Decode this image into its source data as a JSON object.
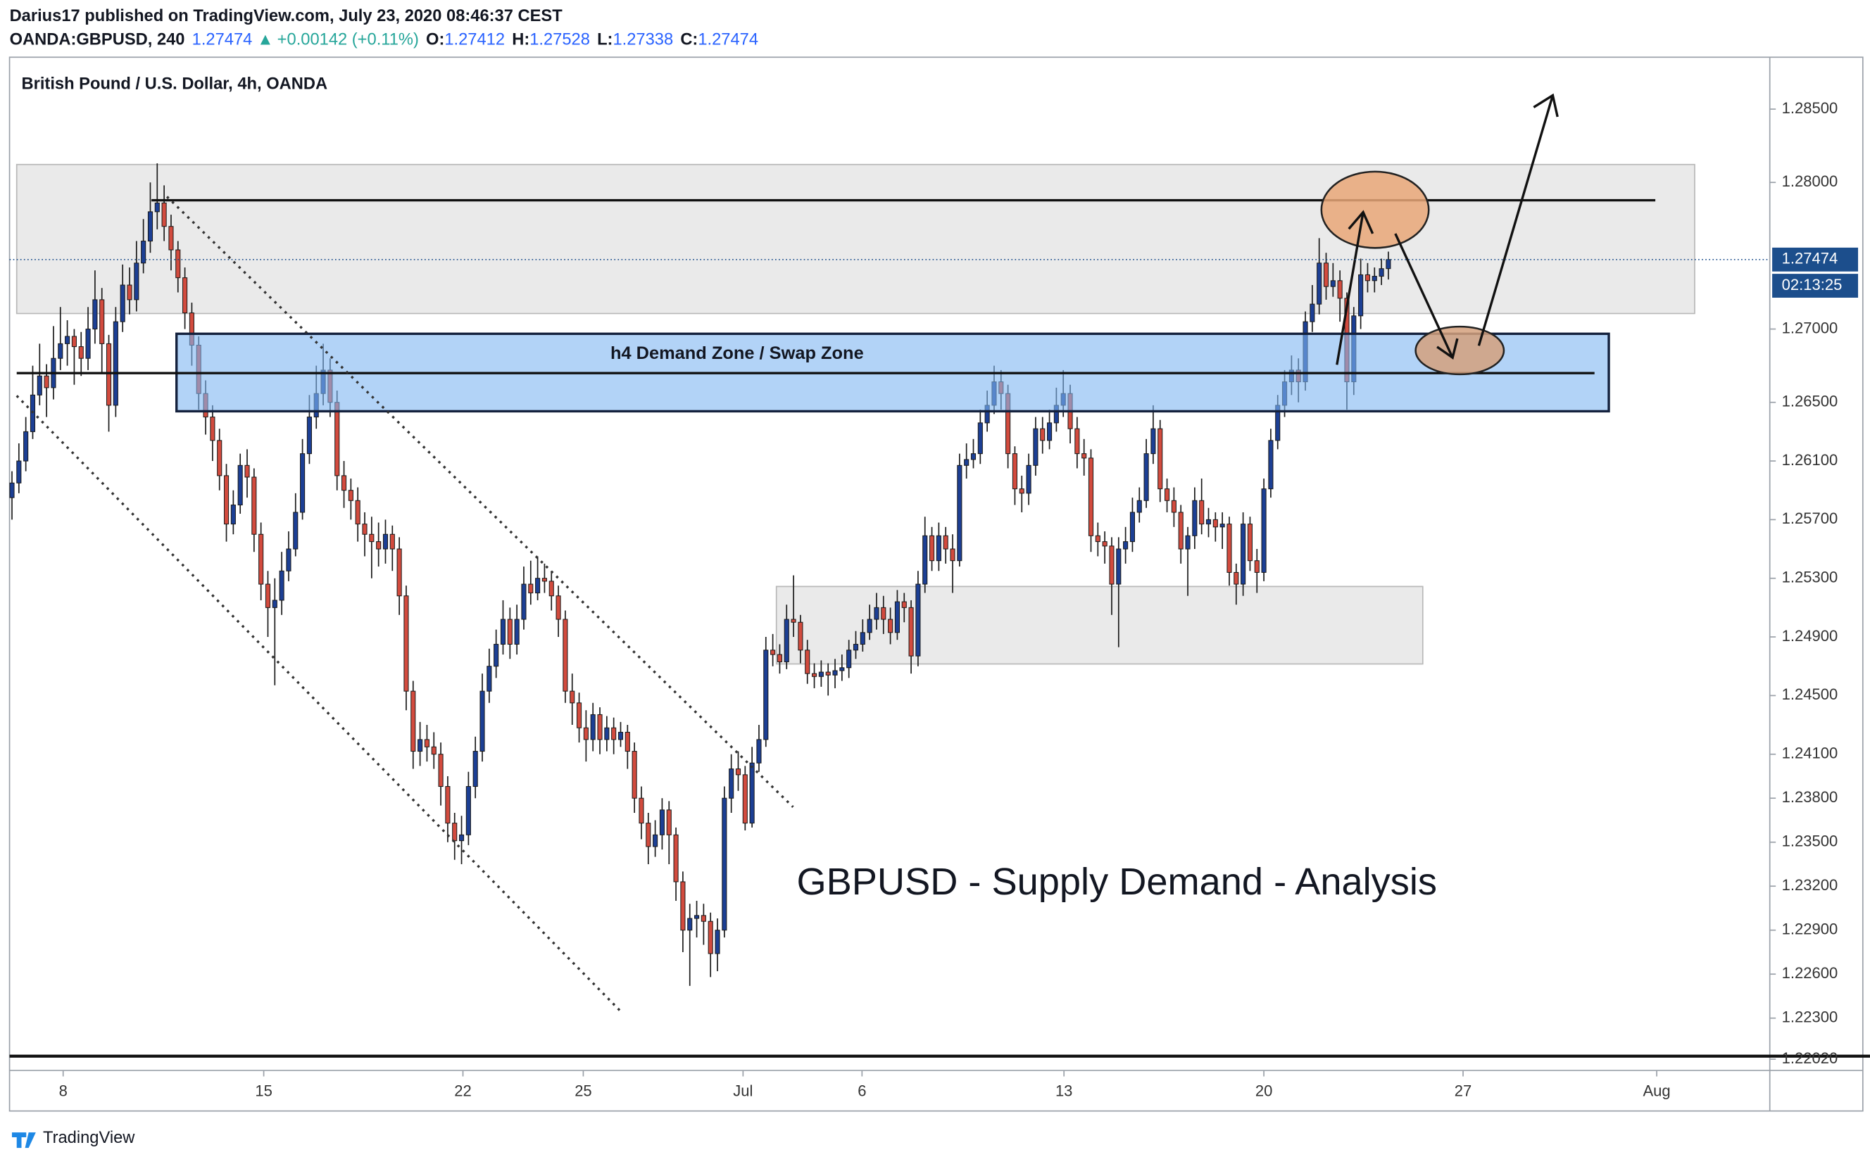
{
  "header": {
    "publisher": "Darius17 published on TradingView.com, July 23, 2020 08:46:37 CEST",
    "symbol": "OANDA:GBPUSD, 240",
    "price": "1.27474",
    "change": "+0.00142 (+0.11%)",
    "ohlc": [
      {
        "label": "O:",
        "value": "1.27412"
      },
      {
        "label": "H:",
        "value": "1.27528"
      },
      {
        "label": "L:",
        "value": "1.27338"
      },
      {
        "label": "C:",
        "value": "1.27474"
      }
    ]
  },
  "chart_data": {
    "type": "candlestick",
    "title": "British Pound / U.S. Dollar, 4h, OANDA",
    "up_color": "#1c3f94",
    "down_color": "#d24b3e",
    "xlim": [
      -0.35,
      254.15
    ],
    "xticks": [
      {
        "value": 7.4,
        "label": "8"
      },
      {
        "value": 36.4,
        "label": "15"
      },
      {
        "value": 65.2,
        "label": "22"
      },
      {
        "value": 82.6,
        "label": "25"
      },
      {
        "value": 105.7,
        "label": "Jul"
      },
      {
        "value": 122.9,
        "label": "6"
      },
      {
        "value": 152.1,
        "label": "13"
      },
      {
        "value": 181.0,
        "label": "20"
      },
      {
        "value": 209.8,
        "label": "27"
      },
      {
        "value": 237.8,
        "label": "Aug"
      }
    ],
    "ylim": [
      1.21943,
      1.28854
    ],
    "yticks": [
      {
        "value": 1.285,
        "label": "1.28500"
      },
      {
        "value": 1.28,
        "label": "1.28000"
      },
      {
        "value": 1.27,
        "label": "1.27000"
      },
      {
        "value": 1.265,
        "label": "1.26500"
      },
      {
        "value": 1.261,
        "label": "1.26100"
      },
      {
        "value": 1.257,
        "label": "1.25700"
      },
      {
        "value": 1.253,
        "label": "1.25300"
      },
      {
        "value": 1.249,
        "label": "1.24900"
      },
      {
        "value": 1.245,
        "label": "1.24500"
      },
      {
        "value": 1.241,
        "label": "1.24100"
      },
      {
        "value": 1.238,
        "label": "1.23800"
      },
      {
        "value": 1.235,
        "label": "1.23500"
      },
      {
        "value": 1.232,
        "label": "1.23200"
      },
      {
        "value": 1.229,
        "label": "1.22900"
      },
      {
        "value": 1.226,
        "label": "1.22600"
      },
      {
        "value": 1.223,
        "label": "1.22300"
      },
      {
        "value": 1.2202,
        "label": "1.22020"
      }
    ],
    "last_price_label": "1.27474",
    "countdown": "02:13:25",
    "annotations": [
      "h4 Demand Zone / Swap Zone",
      "GBPUSD - Supply Demand - Analysis"
    ],
    "candles": [
      [
        1.2585,
        1.2603,
        1.257,
        1.2595
      ],
      [
        1.2595,
        1.2622,
        1.2588,
        1.261
      ],
      [
        1.261,
        1.264,
        1.2603,
        1.263
      ],
      [
        1.263,
        1.2675,
        1.2625,
        1.2655
      ],
      [
        1.2655,
        1.269,
        1.2648,
        1.2668
      ],
      [
        1.2668,
        1.2676,
        1.264,
        1.266
      ],
      [
        1.266,
        1.2702,
        1.2652,
        1.268
      ],
      [
        1.268,
        1.2715,
        1.2672,
        1.269
      ],
      [
        1.269,
        1.2706,
        1.2675,
        1.2695
      ],
      [
        1.2695,
        1.27,
        1.2662,
        1.2688
      ],
      [
        1.2688,
        1.2698,
        1.2668,
        1.268
      ],
      [
        1.268,
        1.2715,
        1.2672,
        1.27
      ],
      [
        1.27,
        1.274,
        1.269,
        1.272
      ],
      [
        1.272,
        1.2728,
        1.267,
        1.269
      ],
      [
        1.269,
        1.2696,
        1.263,
        1.2648
      ],
      [
        1.2648,
        1.2715,
        1.264,
        1.2705
      ],
      [
        1.2705,
        1.2744,
        1.2698,
        1.273
      ],
      [
        1.273,
        1.2742,
        1.271,
        1.272
      ],
      [
        1.272,
        1.276,
        1.2712,
        1.2745
      ],
      [
        1.2745,
        1.2775,
        1.2738,
        1.276
      ],
      [
        1.276,
        1.28,
        1.2752,
        1.278
      ],
      [
        1.278,
        1.2813,
        1.2768,
        1.2786
      ],
      [
        1.2786,
        1.2798,
        1.276,
        1.277
      ],
      [
        1.277,
        1.2778,
        1.274,
        1.2754
      ],
      [
        1.2754,
        1.276,
        1.2725,
        1.2735
      ],
      [
        1.2735,
        1.2742,
        1.27,
        1.2711
      ],
      [
        1.2711,
        1.2718,
        1.2675,
        1.2689
      ],
      [
        1.2689,
        1.2695,
        1.2645,
        1.2656
      ],
      [
        1.2656,
        1.2665,
        1.2628,
        1.264
      ],
      [
        1.264,
        1.2648,
        1.261,
        1.2624
      ],
      [
        1.2624,
        1.2632,
        1.259,
        1.26
      ],
      [
        1.26,
        1.2608,
        1.2555,
        1.2567
      ],
      [
        1.2567,
        1.259,
        1.256,
        1.258
      ],
      [
        1.258,
        1.2615,
        1.2574,
        1.2607
      ],
      [
        1.2607,
        1.2618,
        1.2585,
        1.2599
      ],
      [
        1.2599,
        1.2605,
        1.2548,
        1.256
      ],
      [
        1.256,
        1.2568,
        1.2515,
        1.2526
      ],
      [
        1.2526,
        1.2535,
        1.249,
        1.251
      ],
      [
        1.251,
        1.253,
        1.2457,
        1.2515
      ],
      [
        1.2515,
        1.2548,
        1.2505,
        1.2535
      ],
      [
        1.2535,
        1.2562,
        1.2528,
        1.255
      ],
      [
        1.255,
        1.2588,
        1.2545,
        1.2575
      ],
      [
        1.2575,
        1.2625,
        1.257,
        1.2615
      ],
      [
        1.2615,
        1.2655,
        1.2608,
        1.264
      ],
      [
        1.264,
        1.2675,
        1.2632,
        1.2656
      ],
      [
        1.2656,
        1.269,
        1.2648,
        1.2672
      ],
      [
        1.2672,
        1.268,
        1.264,
        1.265
      ],
      [
        1.265,
        1.2658,
        1.259,
        1.26
      ],
      [
        1.26,
        1.261,
        1.2578,
        1.259
      ],
      [
        1.259,
        1.2598,
        1.257,
        1.2583
      ],
      [
        1.2583,
        1.2592,
        1.2555,
        1.2567
      ],
      [
        1.2567,
        1.2575,
        1.2545,
        1.256
      ],
      [
        1.256,
        1.2572,
        1.253,
        1.2555
      ],
      [
        1.2555,
        1.2568,
        1.2538,
        1.255
      ],
      [
        1.255,
        1.257,
        1.254,
        1.256
      ],
      [
        1.256,
        1.2566,
        1.2535,
        1.255
      ],
      [
        1.255,
        1.2558,
        1.2505,
        1.2518
      ],
      [
        1.2518,
        1.2525,
        1.244,
        1.2453
      ],
      [
        1.2453,
        1.246,
        1.24,
        1.2412
      ],
      [
        1.2412,
        1.2432,
        1.2402,
        1.242
      ],
      [
        1.242,
        1.243,
        1.2405,
        1.2415
      ],
      [
        1.2415,
        1.2425,
        1.24,
        1.241
      ],
      [
        1.241,
        1.2418,
        1.2375,
        1.2388
      ],
      [
        1.2388,
        1.2395,
        1.235,
        1.2363
      ],
      [
        1.2363,
        1.237,
        1.2338,
        1.2351
      ],
      [
        1.2351,
        1.2368,
        1.2335,
        1.2355
      ],
      [
        1.2355,
        1.2398,
        1.2348,
        1.2388
      ],
      [
        1.2388,
        1.2422,
        1.238,
        1.2412
      ],
      [
        1.2412,
        1.2465,
        1.2405,
        1.2453
      ],
      [
        1.2453,
        1.2482,
        1.2445,
        1.247
      ],
      [
        1.247,
        1.2495,
        1.2462,
        1.2485
      ],
      [
        1.2485,
        1.2515,
        1.2478,
        1.2502
      ],
      [
        1.2502,
        1.251,
        1.2475,
        1.2485
      ],
      [
        1.2485,
        1.2512,
        1.2478,
        1.2502
      ],
      [
        1.2502,
        1.2538,
        1.2495,
        1.2526
      ],
      [
        1.2526,
        1.2542,
        1.2512,
        1.252
      ],
      [
        1.252,
        1.2545,
        1.2515,
        1.253
      ],
      [
        1.253,
        1.254,
        1.252,
        1.2528
      ],
      [
        1.2528,
        1.2535,
        1.2508,
        1.2518
      ],
      [
        1.2518,
        1.2525,
        1.249,
        1.2502
      ],
      [
        1.2502,
        1.2508,
        1.2445,
        1.2453
      ],
      [
        1.2453,
        1.2465,
        1.243,
        1.2445
      ],
      [
        1.2445,
        1.2452,
        1.2418,
        1.2428
      ],
      [
        1.2428,
        1.244,
        1.2405,
        1.242
      ],
      [
        1.242,
        1.2445,
        1.2412,
        1.2437
      ],
      [
        1.2437,
        1.2442,
        1.241,
        1.242
      ],
      [
        1.242,
        1.2436,
        1.2412,
        1.2428
      ],
      [
        1.2428,
        1.2435,
        1.241,
        1.242
      ],
      [
        1.242,
        1.2432,
        1.2415,
        1.2425
      ],
      [
        1.2425,
        1.243,
        1.24,
        1.2412
      ],
      [
        1.2412,
        1.2418,
        1.237,
        1.238
      ],
      [
        1.238,
        1.2388,
        1.2352,
        1.2363
      ],
      [
        1.2363,
        1.237,
        1.2335,
        1.2347
      ],
      [
        1.2347,
        1.2365,
        1.234,
        1.2355
      ],
      [
        1.2355,
        1.238,
        1.2345,
        1.2372
      ],
      [
        1.2372,
        1.2378,
        1.2335,
        1.2355
      ],
      [
        1.2355,
        1.236,
        1.231,
        1.2323
      ],
      [
        1.2323,
        1.233,
        1.2275,
        1.229
      ],
      [
        1.229,
        1.2308,
        1.2252,
        1.2298
      ],
      [
        1.2298,
        1.231,
        1.2285,
        1.23
      ],
      [
        1.23,
        1.2308,
        1.228,
        1.2296
      ],
      [
        1.2296,
        1.2302,
        1.2258,
        1.2274
      ],
      [
        1.2274,
        1.2298,
        1.2262,
        1.229
      ],
      [
        1.229,
        1.2388,
        1.2285,
        1.238
      ],
      [
        1.238,
        1.241,
        1.237,
        1.24
      ],
      [
        1.24,
        1.2412,
        1.2385,
        1.2396
      ],
      [
        1.2396,
        1.2402,
        1.2358,
        1.2363
      ],
      [
        1.2363,
        1.2415,
        1.236,
        1.2404
      ],
      [
        1.2404,
        1.243,
        1.2398,
        1.242
      ],
      [
        1.242,
        1.249,
        1.2415,
        1.2481
      ],
      [
        1.2481,
        1.2492,
        1.247,
        1.2478
      ],
      [
        1.2478,
        1.2485,
        1.2465,
        1.2473
      ],
      [
        1.2473,
        1.2512,
        1.2468,
        1.2502
      ],
      [
        1.2502,
        1.2532,
        1.249,
        1.25
      ],
      [
        1.25,
        1.2505,
        1.2472,
        1.2481
      ],
      [
        1.2481,
        1.2488,
        1.2458,
        1.2465
      ],
      [
        1.2465,
        1.2472,
        1.2455,
        1.2463
      ],
      [
        1.2463,
        1.2474,
        1.2456,
        1.2466
      ],
      [
        1.2466,
        1.2472,
        1.245,
        1.2464
      ],
      [
        1.2464,
        1.2475,
        1.2455,
        1.2467
      ],
      [
        1.2467,
        1.2478,
        1.246,
        1.2469
      ],
      [
        1.2469,
        1.2488,
        1.2462,
        1.2481
      ],
      [
        1.2481,
        1.2494,
        1.2475,
        1.2485
      ],
      [
        1.2485,
        1.2502,
        1.248,
        1.2493
      ],
      [
        1.2493,
        1.2512,
        1.2488,
        1.2502
      ],
      [
        1.2502,
        1.252,
        1.2495,
        1.251
      ],
      [
        1.251,
        1.2518,
        1.2492,
        1.2502
      ],
      [
        1.2502,
        1.251,
        1.2485,
        1.2493
      ],
      [
        1.2493,
        1.2522,
        1.2488,
        1.2514
      ],
      [
        1.2514,
        1.252,
        1.25,
        1.251
      ],
      [
        1.251,
        1.2515,
        1.2465,
        1.2477
      ],
      [
        1.2477,
        1.2535,
        1.247,
        1.2526
      ],
      [
        1.2526,
        1.2572,
        1.252,
        1.2559
      ],
      [
        1.2559,
        1.2565,
        1.2535,
        1.2542
      ],
      [
        1.2542,
        1.2568,
        1.2535,
        1.2559
      ],
      [
        1.2559,
        1.2565,
        1.254,
        1.255
      ],
      [
        1.255,
        1.256,
        1.252,
        1.2542
      ],
      [
        1.2542,
        1.2615,
        1.2538,
        1.2607
      ],
      [
        1.2607,
        1.2622,
        1.2598,
        1.2611
      ],
      [
        1.2611,
        1.2625,
        1.2605,
        1.2615
      ],
      [
        1.2615,
        1.2645,
        1.2608,
        1.2636
      ],
      [
        1.2636,
        1.2658,
        1.263,
        1.2648
      ],
      [
        1.2648,
        1.2675,
        1.2642,
        1.2664
      ],
      [
        1.2664,
        1.2672,
        1.2645,
        1.2656
      ],
      [
        1.2656,
        1.2662,
        1.2605,
        1.2615
      ],
      [
        1.2615,
        1.262,
        1.258,
        1.2591
      ],
      [
        1.2591,
        1.26,
        1.2575,
        1.2588
      ],
      [
        1.2588,
        1.2615,
        1.258,
        1.2607
      ],
      [
        1.2607,
        1.264,
        1.26,
        1.2632
      ],
      [
        1.2632,
        1.264,
        1.2615,
        1.2624
      ],
      [
        1.2624,
        1.2645,
        1.2618,
        1.2636
      ],
      [
        1.2636,
        1.266,
        1.263,
        1.2648
      ],
      [
        1.2648,
        1.2672,
        1.264,
        1.2656
      ],
      [
        1.2656,
        1.2662,
        1.2622,
        1.2632
      ],
      [
        1.2632,
        1.264,
        1.2605,
        1.2615
      ],
      [
        1.2615,
        1.2625,
        1.26,
        1.2612
      ],
      [
        1.2612,
        1.2618,
        1.2548,
        1.2559
      ],
      [
        1.2559,
        1.2568,
        1.2545,
        1.2555
      ],
      [
        1.2555,
        1.2562,
        1.254,
        1.2552
      ],
      [
        1.2552,
        1.2558,
        1.2505,
        1.2526
      ],
      [
        1.2526,
        1.2558,
        1.2483,
        1.255
      ],
      [
        1.255,
        1.2565,
        1.254,
        1.2555
      ],
      [
        1.2555,
        1.2585,
        1.2548,
        1.2575
      ],
      [
        1.2575,
        1.2592,
        1.2568,
        1.2583
      ],
      [
        1.2583,
        1.2625,
        1.2578,
        1.2615
      ],
      [
        1.2615,
        1.2648,
        1.2608,
        1.2632
      ],
      [
        1.2632,
        1.2638,
        1.2582,
        1.2591
      ],
      [
        1.2591,
        1.2598,
        1.2575,
        1.2583
      ],
      [
        1.2583,
        1.2592,
        1.2565,
        1.2575
      ],
      [
        1.2575,
        1.258,
        1.254,
        1.255
      ],
      [
        1.255,
        1.2565,
        1.2518,
        1.2559
      ],
      [
        1.2559,
        1.2592,
        1.255,
        1.2583
      ],
      [
        1.2583,
        1.2598,
        1.256,
        1.2567
      ],
      [
        1.2567,
        1.2578,
        1.2558,
        1.257
      ],
      [
        1.257,
        1.2575,
        1.2555,
        1.2565
      ],
      [
        1.2565,
        1.2575,
        1.255,
        1.2567
      ],
      [
        1.2567,
        1.2572,
        1.2525,
        1.2534
      ],
      [
        1.2534,
        1.254,
        1.2512,
        1.2526
      ],
      [
        1.2526,
        1.2575,
        1.2518,
        1.2567
      ],
      [
        1.2567,
        1.2572,
        1.2535,
        1.2542
      ],
      [
        1.2542,
        1.255,
        1.252,
        1.2534
      ],
      [
        1.2534,
        1.2598,
        1.2528,
        1.2591
      ],
      [
        1.2591,
        1.2632,
        1.2585,
        1.2624
      ],
      [
        1.2624,
        1.2655,
        1.2618,
        1.2648
      ],
      [
        1.2648,
        1.2672,
        1.264,
        1.2664
      ],
      [
        1.2664,
        1.2682,
        1.2655,
        1.2672
      ],
      [
        1.2672,
        1.268,
        1.265,
        1.2664
      ],
      [
        1.2664,
        1.2712,
        1.2658,
        1.2705
      ],
      [
        1.2705,
        1.273,
        1.2698,
        1.2717
      ],
      [
        1.2717,
        1.2762,
        1.271,
        1.2745
      ],
      [
        1.2745,
        1.2752,
        1.272,
        1.2729
      ],
      [
        1.2729,
        1.2745,
        1.2722,
        1.2733
      ],
      [
        1.2733,
        1.274,
        1.2705,
        1.2721
      ],
      [
        1.2721,
        1.2725,
        1.2645,
        1.2664
      ],
      [
        1.2664,
        1.2715,
        1.2655,
        1.2709
      ],
      [
        1.2709,
        1.2748,
        1.27,
        1.2737
      ],
      [
        1.2737,
        1.2745,
        1.2725,
        1.2733
      ],
      [
        1.2733,
        1.2742,
        1.2725,
        1.2736
      ],
      [
        1.2736,
        1.2748,
        1.273,
        1.27412
      ],
      [
        1.27412,
        1.27528,
        1.27338,
        1.27474
      ]
    ]
  },
  "footer": {
    "brand": "TradingView"
  }
}
